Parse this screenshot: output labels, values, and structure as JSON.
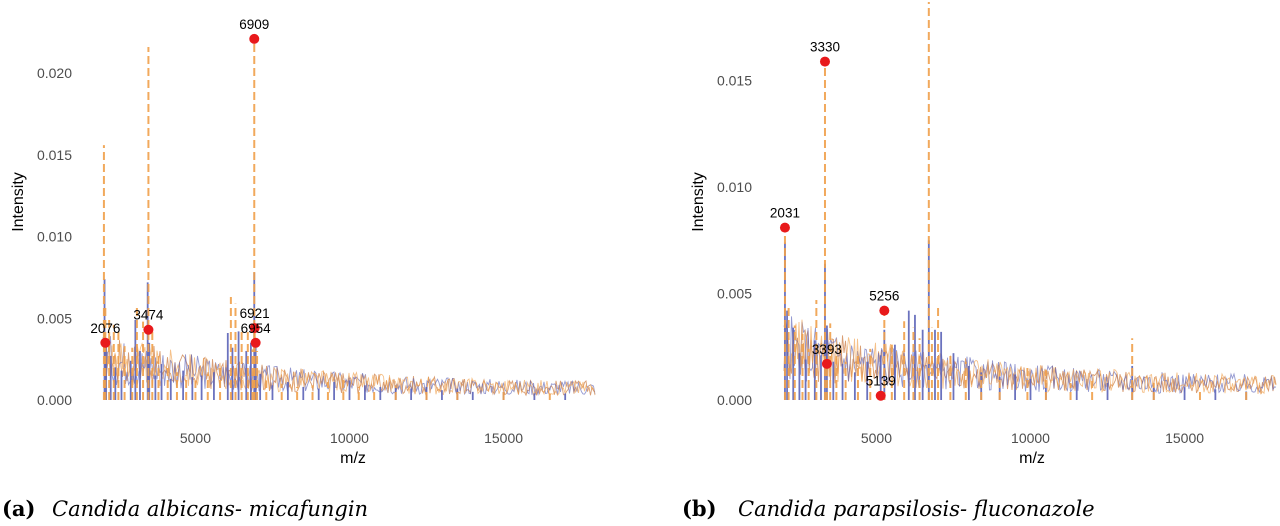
{
  "colors": {
    "blue_series": "#5b63b8",
    "orange_series": "#f0a04b",
    "orange_dark": "#c46a2a",
    "marker": "#e8191b"
  },
  "chart_data": [
    {
      "type": "line",
      "xlabel": "m/z",
      "ylabel": "Intensity",
      "xlim": [
        2000,
        18000
      ],
      "ylim": [
        0,
        0.0235
      ],
      "xticks": [
        5000,
        10000,
        15000
      ],
      "xtick_labels": [
        "5000",
        "10000",
        "15000"
      ],
      "yticks": [
        0,
        0.005,
        0.01,
        0.015,
        0.02
      ],
      "ytick_labels": [
        "0.000",
        "0.005",
        "0.010",
        "0.015",
        "0.020"
      ],
      "grid": false,
      "caption_letter": "(a)",
      "caption_text": "Candida albicans- micafungin",
      "series": [
        {
          "style": "solid",
          "color": "#5b63b8",
          "x": [
            2050,
            2100,
            2250,
            2400,
            2600,
            2900,
            3050,
            3200,
            3450,
            3500,
            3700,
            3900,
            4200,
            4600,
            4900,
            5200,
            5600,
            6050,
            6200,
            6400,
            6650,
            6800,
            6909,
            6954,
            7100,
            7500,
            8000,
            8500,
            9000,
            9500,
            10000,
            10500,
            11000,
            11500,
            12000,
            12500,
            13000,
            13500,
            14000,
            15000,
            16000,
            17000
          ],
          "values": [
            0.0074,
            0.0034,
            0.0027,
            0.002,
            0.0018,
            0.0024,
            0.0049,
            0.003,
            0.0072,
            0.0035,
            0.0015,
            0.0022,
            0.0013,
            0.0018,
            0.0014,
            0.0015,
            0.0017,
            0.0041,
            0.0032,
            0.0042,
            0.003,
            0.0035,
            0.0078,
            0.0034,
            0.0016,
            0.0009,
            0.0011,
            0.0008,
            0.0007,
            0.0011,
            0.0012,
            0.0009,
            0.0008,
            0.0009,
            0.0007,
            0.0008,
            0.0006,
            0.0007,
            0.0005,
            0.0005,
            0.0004,
            0.0004
          ]
        },
        {
          "style": "dashed",
          "color": "#f0a04b",
          "x": [
            2030,
            2076,
            2200,
            2350,
            2500,
            2700,
            2950,
            3100,
            3300,
            3474,
            3600,
            3800,
            4100,
            4400,
            4700,
            5000,
            5400,
            5800,
            6150,
            6300,
            6500,
            6700,
            6850,
            6909,
            6921,
            7000,
            7300,
            7800,
            8300,
            8800,
            9300,
            9800,
            10300,
            10800,
            11500,
            12500,
            13500,
            15000,
            16500
          ],
          "values": [
            0.0156,
            0.0058,
            0.005,
            0.0046,
            0.0044,
            0.0033,
            0.0032,
            0.0057,
            0.0048,
            0.0216,
            0.0042,
            0.0028,
            0.0022,
            0.0017,
            0.0015,
            0.0012,
            0.0016,
            0.0022,
            0.0063,
            0.0059,
            0.0044,
            0.0042,
            0.0031,
            0.0221,
            0.0045,
            0.003,
            0.0012,
            0.001,
            0.0008,
            0.0009,
            0.0011,
            0.0013,
            0.0008,
            0.0007,
            0.0009,
            0.0006,
            0.0006,
            0.0005,
            0.0004
          ]
        }
      ],
      "annotations": [
        {
          "label": "6909",
          "x": 6909,
          "y": 0.0221
        },
        {
          "label": "2076",
          "x": 2076,
          "y": 0.0035
        },
        {
          "label": "3474",
          "x": 3474,
          "y": 0.0043
        },
        {
          "label": "6921",
          "x": 6921,
          "y": 0.0044
        },
        {
          "label": "6954",
          "x": 6954,
          "y": 0.0035
        }
      ]
    },
    {
      "type": "line",
      "xlabel": "m/z",
      "ylabel": "Intensity",
      "xlim": [
        2000,
        18000
      ],
      "ylim": [
        0,
        0.0187
      ],
      "xticks": [
        5000,
        10000,
        15000
      ],
      "xtick_labels": [
        "5000",
        "10000",
        "15000"
      ],
      "yticks": [
        0,
        0.005,
        0.01,
        0.015
      ],
      "ytick_labels": [
        "0.000",
        "0.005",
        "0.010",
        "0.015"
      ],
      "grid": false,
      "caption_letter": "(b)",
      "caption_text": "Candida parapsilosis- fluconazole",
      "series": [
        {
          "style": "solid",
          "color": "#5b63b8",
          "x": [
            2031,
            2100,
            2300,
            2500,
            2700,
            3000,
            3200,
            3330,
            3393,
            3600,
            3900,
            4300,
            4700,
            5139,
            5256,
            5600,
            6050,
            6250,
            6500,
            6700,
            6900,
            7100,
            7500,
            8000,
            8400,
            9000,
            9500,
            10000,
            10500,
            11500,
            12500,
            13300,
            14000,
            15000,
            16000,
            17000
          ],
          "values": [
            0.0074,
            0.0042,
            0.0034,
            0.0022,
            0.0019,
            0.0028,
            0.0021,
            0.0064,
            0.0035,
            0.0018,
            0.0017,
            0.0013,
            0.0018,
            0.0021,
            0.0033,
            0.0026,
            0.0042,
            0.004,
            0.0033,
            0.0075,
            0.0033,
            0.0032,
            0.0022,
            0.0016,
            0.0013,
            0.0011,
            0.0012,
            0.001,
            0.0008,
            0.0009,
            0.0008,
            0.0016,
            0.0006,
            0.0006,
            0.0005,
            0.0004
          ]
        },
        {
          "style": "dashed",
          "color": "#f0a04b",
          "x": [
            2031,
            2150,
            2350,
            2600,
            2800,
            3050,
            3330,
            3393,
            3500,
            3700,
            4000,
            4400,
            4800,
            5139,
            5256,
            5500,
            5900,
            6200,
            6400,
            6700,
            6800,
            7000,
            7400,
            7900,
            8400,
            9000,
            9900,
            10500,
            11300,
            12000,
            13300,
            14000,
            15500,
            17000
          ],
          "values": [
            0.0081,
            0.0044,
            0.0035,
            0.0031,
            0.0024,
            0.0047,
            0.0159,
            0.0017,
            0.0036,
            0.0022,
            0.0018,
            0.0021,
            0.0024,
            0.0002,
            0.0042,
            0.0026,
            0.0037,
            0.0034,
            0.0029,
            0.0187,
            0.0034,
            0.0045,
            0.0022,
            0.0018,
            0.0012,
            0.0014,
            0.0016,
            0.0014,
            0.0008,
            0.0009,
            0.0029,
            0.0008,
            0.0005,
            0.0004
          ]
        }
      ],
      "annotations": [
        {
          "label": "3330",
          "x": 3330,
          "y": 0.0159
        },
        {
          "label": "2031",
          "x": 2031,
          "y": 0.0081
        },
        {
          "label": "5256",
          "x": 5256,
          "y": 0.0042
        },
        {
          "label": "3393",
          "x": 3393,
          "y": 0.0017
        },
        {
          "label": "5139",
          "x": 5139,
          "y": 0.0002
        }
      ]
    }
  ]
}
